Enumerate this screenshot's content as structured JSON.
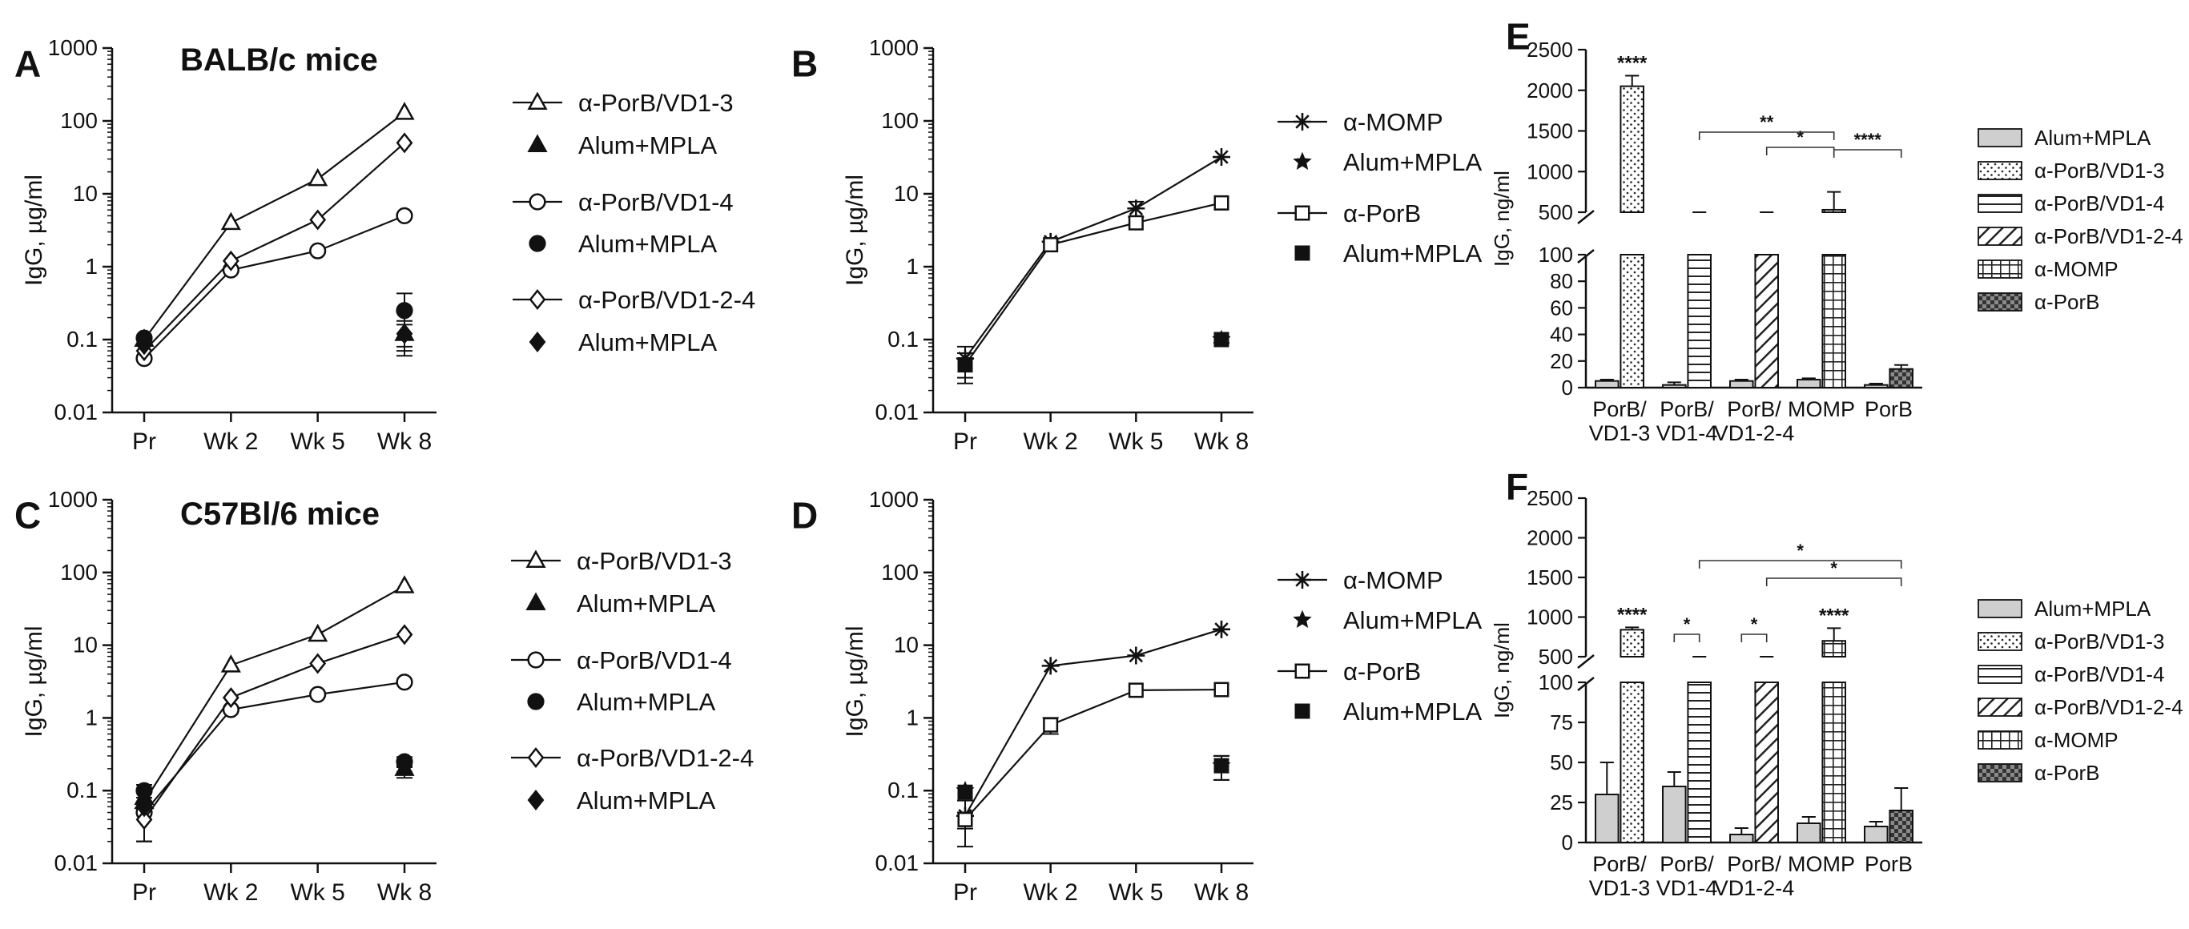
{
  "figure": {
    "panels": [
      {
        "label": "A",
        "title": "BALB/c mice"
      },
      {
        "label": "B",
        "title": ""
      },
      {
        "label": "C",
        "title": "C57Bl/6 mice"
      },
      {
        "label": "D",
        "title": ""
      },
      {
        "label": "E",
        "title": ""
      },
      {
        "label": "F",
        "title": ""
      }
    ]
  },
  "chart_data": [
    {
      "panel": "A",
      "type": "line",
      "title": "BALB/c mice",
      "ylabel": "IgG, µg/ml",
      "xlabel": "",
      "yscale": "log",
      "ylim": [
        0.01,
        1000
      ],
      "yticks": [
        "0.01",
        "0.1",
        "1",
        "10",
        "100",
        "1000"
      ],
      "categories": [
        "Pr",
        "Wk 2",
        "Wk 5",
        "Wk 8"
      ],
      "series": [
        {
          "name": "α-PorB/VD1-3",
          "marker": "triangle-open",
          "values": [
            0.1,
            4,
            16,
            130
          ],
          "err": [
            0,
            0,
            0,
            0
          ]
        },
        {
          "name": "Alum+MPLA",
          "marker": "triangle-filled",
          "values": [
            0.1,
            null,
            null,
            0.12
          ],
          "err": [
            0,
            0,
            0,
            0.06
          ]
        },
        {
          "name": "α-PorB/VD1-4",
          "marker": "circle-open",
          "values": [
            0.055,
            0.9,
            1.65,
            5
          ],
          "err": [
            0,
            0,
            0,
            0
          ]
        },
        {
          "name": "Alum+MPLA",
          "marker": "circle-filled",
          "values": [
            0.105,
            null,
            null,
            0.25
          ],
          "err": [
            0,
            0,
            0,
            0.18
          ]
        },
        {
          "name": "α-PorB/VD1-2-4",
          "marker": "diamond-open",
          "values": [
            0.07,
            1.2,
            4.4,
            50
          ],
          "err": [
            0,
            0,
            0,
            0
          ]
        },
        {
          "name": "Alum+MPLA",
          "marker": "diamond-filled",
          "values": [
            0.085,
            null,
            null,
            0.12
          ],
          "err": [
            0,
            0,
            0,
            0.04
          ]
        }
      ]
    },
    {
      "panel": "B",
      "type": "line",
      "title": "",
      "ylabel": "IgG, µg/ml",
      "xlabel": "",
      "yscale": "log",
      "ylim": [
        0.01,
        1000
      ],
      "yticks": [
        "0.01",
        "0.1",
        "1",
        "10",
        "100",
        "1000"
      ],
      "categories": [
        "Pr",
        "Wk 2",
        "Wk 5",
        "Wk 8"
      ],
      "series": [
        {
          "name": "α-MOMP",
          "marker": "asterisk",
          "values": [
            0.055,
            2.2,
            6.3,
            32
          ],
          "err": [
            0.025,
            0,
            1.5,
            0
          ]
        },
        {
          "name": "Alum+MPLA",
          "marker": "star",
          "values": [
            0.05,
            null,
            null,
            0.1
          ],
          "err": [
            0,
            0,
            0,
            0.01
          ]
        },
        {
          "name": "α-PorB",
          "marker": "square-open",
          "values": [
            0.045,
            2.0,
            4.0,
            7.5
          ],
          "err": [
            0.02,
            0,
            0,
            0
          ]
        },
        {
          "name": "Alum+MPLA",
          "marker": "square-filled",
          "values": [
            0.045,
            null,
            null,
            0.1
          ],
          "err": [
            0,
            0,
            0,
            0.01
          ]
        }
      ]
    },
    {
      "panel": "C",
      "type": "line",
      "title": "C57Bl/6 mice",
      "ylabel": "IgG, µg/ml",
      "xlabel": "",
      "yscale": "log",
      "ylim": [
        0.01,
        1000
      ],
      "yticks": [
        "0.01",
        "0.1",
        "1",
        "10",
        "100",
        "1000"
      ],
      "categories": [
        "Pr",
        "Wk 2",
        "Wk 5",
        "Wk 8"
      ],
      "series": [
        {
          "name": "α-PorB/VD1-3",
          "marker": "triangle-open",
          "values": [
            0.07,
            5.3,
            14,
            65
          ],
          "err": [
            0.05,
            0,
            0,
            0
          ]
        },
        {
          "name": "Alum+MPLA",
          "marker": "triangle-filled",
          "values": [
            0.08,
            null,
            null,
            0.2
          ],
          "err": [
            0,
            0,
            0,
            0.05
          ]
        },
        {
          "name": "α-PorB/VD1-4",
          "marker": "circle-open",
          "values": [
            0.05,
            1.3,
            2.1,
            3.1
          ],
          "err": [
            0.03,
            0,
            0,
            0
          ]
        },
        {
          "name": "Alum+MPLA",
          "marker": "circle-filled",
          "values": [
            0.1,
            null,
            null,
            0.25
          ],
          "err": [
            0,
            0,
            0,
            0.04
          ]
        },
        {
          "name": "α-PorB/VD1-2-4",
          "marker": "diamond-open",
          "values": [
            0.04,
            1.9,
            5.6,
            14
          ],
          "err": [
            0.02,
            0,
            0,
            0
          ]
        },
        {
          "name": "Alum+MPLA",
          "marker": "diamond-filled",
          "values": [
            0.06,
            null,
            null,
            0.22
          ],
          "err": [
            0,
            0,
            0,
            0.04
          ]
        }
      ]
    },
    {
      "panel": "D",
      "type": "line",
      "title": "",
      "ylabel": "IgG, µg/ml",
      "xlabel": "",
      "yscale": "log",
      "ylim": [
        0.01,
        1000
      ],
      "yticks": [
        "0.01",
        "0.1",
        "1",
        "10",
        "100",
        "1000"
      ],
      "categories": [
        "Pr",
        "Wk 2",
        "Wk 5",
        "Wk 8"
      ],
      "series": [
        {
          "name": "α-MOMP",
          "marker": "asterisk",
          "values": [
            0.045,
            5.2,
            7.2,
            16.5
          ],
          "err": [
            0.028,
            0,
            0,
            0
          ]
        },
        {
          "name": "Alum+MPLA",
          "marker": "star",
          "values": [
            0.1,
            null,
            null,
            0.22
          ],
          "err": [
            0,
            0,
            0,
            0.08
          ]
        },
        {
          "name": "α-PorB",
          "marker": "square-open",
          "values": [
            0.04,
            0.8,
            2.4,
            2.45
          ],
          "err": [
            0.01,
            0.2,
            0,
            0
          ]
        },
        {
          "name": "Alum+MPLA",
          "marker": "square-filled",
          "values": [
            0.095,
            null,
            null,
            0.22
          ],
          "err": [
            0,
            0,
            0,
            0.08
          ]
        }
      ]
    },
    {
      "panel": "E",
      "type": "bar",
      "title": "",
      "ylabel": "IgG, ng/ml",
      "xlabel": "",
      "yaxis_break": {
        "lower": [
          0,
          100
        ],
        "upper": [
          500,
          2500
        ]
      },
      "yticks_lower": [
        "0",
        "20",
        "40",
        "60",
        "80",
        "100"
      ],
      "yticks_upper": [
        "500",
        "1000",
        "1500",
        "2000",
        "2500"
      ],
      "categories": [
        "PorB/\nVD1-3",
        "PorB/\nVD1-4",
        "PorB/\nVD1-2-4",
        "MOMP",
        "PorB"
      ],
      "bars": [
        {
          "group": 0,
          "series": "Alum+MPLA",
          "value": 5,
          "err": 1
        },
        {
          "group": 0,
          "series": "α-PorB/VD1-3",
          "value": 2050,
          "err": 130
        },
        {
          "group": 1,
          "series": "Alum+MPLA",
          "value": 2,
          "err": 2
        },
        {
          "group": 1,
          "series": "α-PorB/VD1-4",
          "value": 170,
          "err": 30
        },
        {
          "group": 2,
          "series": "Alum+MPLA",
          "value": 5,
          "err": 1
        },
        {
          "group": 2,
          "series": "α-PorB/VD1-2-4",
          "value": 210,
          "err": 40
        },
        {
          "group": 3,
          "series": "Alum+MPLA",
          "value": 6,
          "err": 1
        },
        {
          "group": 3,
          "series": "α-MOMP",
          "value": 530,
          "err": 220
        },
        {
          "group": 4,
          "series": "Alum+MPLA",
          "value": 2,
          "err": 1
        },
        {
          "group": 4,
          "series": "α-PorB",
          "value": 14,
          "err": 3
        }
      ],
      "annotations": [
        {
          "text": "****",
          "over": 1
        },
        {
          "text": "**",
          "from": 3,
          "to": 7
        },
        {
          "text": "*",
          "from": 5,
          "to": 7
        },
        {
          "text": "****",
          "from": 7,
          "to": 9
        }
      ],
      "legend": [
        {
          "name": "Alum+MPLA",
          "pattern": "gray"
        },
        {
          "name": "α-PorB/VD1-3",
          "pattern": "dots"
        },
        {
          "name": "α-PorB/VD1-4",
          "pattern": "hlines"
        },
        {
          "name": "α-PorB/VD1-2-4",
          "pattern": "diag"
        },
        {
          "name": "α-MOMP",
          "pattern": "grid"
        },
        {
          "name": "α-PorB",
          "pattern": "check"
        }
      ]
    },
    {
      "panel": "F",
      "type": "bar",
      "title": "",
      "ylabel": "IgG, ng/ml",
      "xlabel": "",
      "yaxis_break": {
        "lower": [
          0,
          100
        ],
        "upper": [
          500,
          2500
        ]
      },
      "yticks_lower": [
        "0",
        "25",
        "50",
        "75",
        "100"
      ],
      "yticks_upper": [
        "500",
        "1000",
        "1500",
        "2000",
        "2500"
      ],
      "categories": [
        "PorB/\nVD1-3",
        "PorB/\nVD1-4",
        "PorB/\nVD1-2-4",
        "MOMP",
        "PorB"
      ],
      "bars": [
        {
          "group": 0,
          "series": "Alum+MPLA",
          "value": 30,
          "err": 20
        },
        {
          "group": 0,
          "series": "α-PorB/VD1-3",
          "value": 840,
          "err": 30
        },
        {
          "group": 1,
          "series": "Alum+MPLA",
          "value": 35,
          "err": 9
        },
        {
          "group": 1,
          "series": "α-PorB/VD1-4",
          "value": 200,
          "err": 60
        },
        {
          "group": 2,
          "series": "Alum+MPLA",
          "value": 5,
          "err": 4
        },
        {
          "group": 2,
          "series": "α-PorB/VD1-2-4",
          "value": 170,
          "err": 80
        },
        {
          "group": 3,
          "series": "Alum+MPLA",
          "value": 12,
          "err": 4
        },
        {
          "group": 3,
          "series": "α-MOMP",
          "value": 700,
          "err": 160
        },
        {
          "group": 4,
          "series": "Alum+MPLA",
          "value": 10,
          "err": 3
        },
        {
          "group": 4,
          "series": "α-PorB",
          "value": 20,
          "err": 14
        }
      ],
      "annotations": [
        {
          "text": "****",
          "over": 1
        },
        {
          "text": "*",
          "from": 2,
          "to": 3
        },
        {
          "text": "*",
          "from": 4,
          "to": 5
        },
        {
          "text": "****",
          "over": 7
        },
        {
          "text": "*",
          "from": 3,
          "to": 9
        },
        {
          "text": "*",
          "from": 5,
          "to": 9
        }
      ],
      "legend": [
        {
          "name": "Alum+MPLA",
          "pattern": "gray"
        },
        {
          "name": "α-PorB/VD1-3",
          "pattern": "dots"
        },
        {
          "name": "α-PorB/VD1-4",
          "pattern": "hlines"
        },
        {
          "name": "α-PorB/VD1-2-4",
          "pattern": "diag"
        },
        {
          "name": "α-MOMP",
          "pattern": "grid"
        },
        {
          "name": "α-PorB",
          "pattern": "check"
        }
      ]
    }
  ]
}
